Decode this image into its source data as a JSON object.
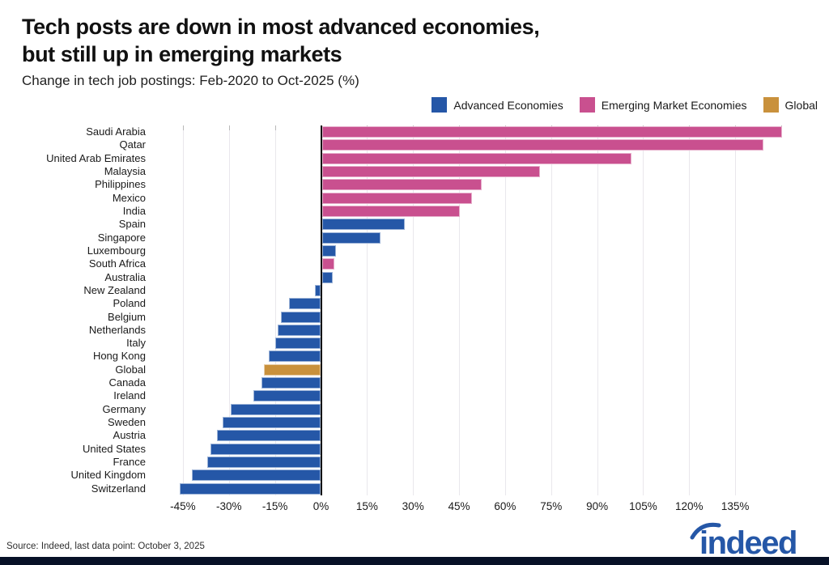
{
  "header": {
    "title_line1": "Tech posts are down in most advanced economies,",
    "title_line2": "but still up in emerging markets",
    "subtitle": "Change in tech job postings: Feb-2020 to Oct-2025 (%)"
  },
  "legend": {
    "position": "top-right",
    "items": [
      {
        "label": "Advanced Economies",
        "color": "#2557a7"
      },
      {
        "label": "Emerging Market Economies",
        "color": "#c9508f"
      },
      {
        "label": "Global",
        "color": "#c9913c"
      }
    ]
  },
  "chart_data": {
    "type": "bar",
    "orientation": "horizontal",
    "title": "Tech posts are down in most advanced economies, but still up in emerging markets",
    "subtitle": "Change in tech job postings: Feb-2020 to Oct-2025 (%)",
    "unit": "%",
    "xlim": [
      -54,
      163
    ],
    "grid": true,
    "x_tick_labels": [
      "-45%",
      "-30%",
      "-15%",
      "0%",
      "15%",
      "30%",
      "45%",
      "60%",
      "75%",
      "90%",
      "105%",
      "120%",
      "135%"
    ],
    "x_ticks": [
      -45,
      -30,
      -15,
      0,
      15,
      30,
      45,
      60,
      75,
      90,
      105,
      120,
      135
    ],
    "series_colors": {
      "Advanced Economies": "#2557a7",
      "Emerging Market Economies": "#c9508f",
      "Global": "#c9913c"
    },
    "bars": [
      {
        "label": "Saudi Arabia",
        "value": 150,
        "group": "Emerging Market Economies"
      },
      {
        "label": "Qatar",
        "value": 144,
        "group": "Emerging Market Economies"
      },
      {
        "label": "United Arab Emirates",
        "value": 101,
        "group": "Emerging Market Economies"
      },
      {
        "label": "Malaysia",
        "value": 71,
        "group": "Emerging Market Economies"
      },
      {
        "label": "Philippines",
        "value": 52,
        "group": "Emerging Market Economies"
      },
      {
        "label": "Mexico",
        "value": 49,
        "group": "Emerging Market Economies"
      },
      {
        "label": "India",
        "value": 45,
        "group": "Emerging Market Economies"
      },
      {
        "label": "Spain",
        "value": 27,
        "group": "Advanced Economies"
      },
      {
        "label": "Singapore",
        "value": 19,
        "group": "Advanced Economies"
      },
      {
        "label": "Luxembourg",
        "value": 4.5,
        "group": "Advanced Economies"
      },
      {
        "label": "South Africa",
        "value": 4,
        "group": "Emerging Market Economies"
      },
      {
        "label": "Australia",
        "value": 3.5,
        "group": "Advanced Economies"
      },
      {
        "label": "New Zealand",
        "value": -2,
        "group": "Advanced Economies"
      },
      {
        "label": "Poland",
        "value": -10.5,
        "group": "Advanced Economies"
      },
      {
        "label": "Belgium",
        "value": -13,
        "group": "Advanced Economies"
      },
      {
        "label": "Netherlands",
        "value": -14,
        "group": "Advanced Economies"
      },
      {
        "label": "Italy",
        "value": -15,
        "group": "Advanced Economies"
      },
      {
        "label": "Hong Kong",
        "value": -17,
        "group": "Advanced Economies"
      },
      {
        "label": "Global",
        "value": -18.5,
        "group": "Global"
      },
      {
        "label": "Canada",
        "value": -19.5,
        "group": "Advanced Economies"
      },
      {
        "label": "Ireland",
        "value": -22,
        "group": "Advanced Economies"
      },
      {
        "label": "Germany",
        "value": -29.5,
        "group": "Advanced Economies"
      },
      {
        "label": "Sweden",
        "value": -32,
        "group": "Advanced Economies"
      },
      {
        "label": "Austria",
        "value": -34,
        "group": "Advanced Economies"
      },
      {
        "label": "United States",
        "value": -36,
        "group": "Advanced Economies"
      },
      {
        "label": "France",
        "value": -37,
        "group": "Advanced Economies"
      },
      {
        "label": "United Kingdom",
        "value": -42,
        "group": "Advanced Economies"
      },
      {
        "label": "Switzerland",
        "value": -46,
        "group": "Advanced Economies"
      }
    ]
  },
  "footer": {
    "source": "Source: Indeed, last data point: October 3, 2025",
    "logo_text": "indeed"
  },
  "colors": {
    "zero_line": "#121212",
    "gridline": "#e9e7ec",
    "logo_blue": "#2557a7",
    "bottom_bar": "#071127"
  }
}
